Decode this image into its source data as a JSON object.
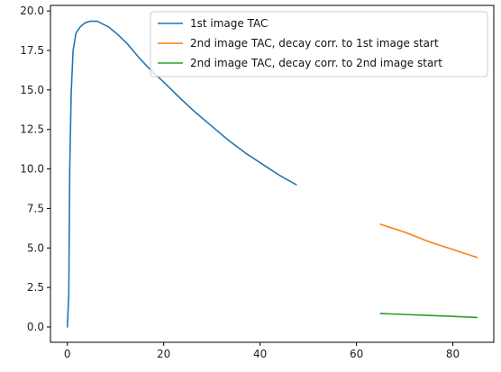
{
  "chart_data": {
    "type": "line",
    "xlim": [
      -3.5,
      88.5
    ],
    "ylim": [
      -0.97,
      20.35
    ],
    "x_ticks": [
      0,
      20,
      40,
      60,
      80
    ],
    "x_tick_labels": [
      "0",
      "20",
      "40",
      "60",
      "80"
    ],
    "y_ticks": [
      0.0,
      2.5,
      5.0,
      7.5,
      10.0,
      12.5,
      15.0,
      17.5,
      20.0
    ],
    "y_tick_labels": [
      "0.0",
      "2.5",
      "5.0",
      "7.5",
      "10.0",
      "12.5",
      "15.0",
      "17.5",
      "20.0"
    ],
    "grid": false,
    "legend_position": "upper-right",
    "series": [
      {
        "name": "1st image TAC",
        "color": "#1f77b4",
        "x": [
          0.0,
          0.3,
          0.5,
          0.8,
          1.2,
          1.8,
          2.7,
          3.7,
          4.8,
          6.2,
          8.5,
          10.5,
          12.5,
          15.0,
          17.5,
          20.0,
          23.0,
          26.5,
          30.0,
          33.5,
          37.0,
          40.5,
          44.0,
          47.5
        ],
        "y": [
          0.0,
          2.0,
          10.0,
          14.8,
          17.5,
          18.6,
          19.0,
          19.25,
          19.35,
          19.35,
          19.0,
          18.5,
          17.9,
          17.0,
          16.2,
          15.5,
          14.6,
          13.6,
          12.7,
          11.8,
          11.0,
          10.3,
          9.6,
          9.0
        ]
      },
      {
        "name": "2nd image TAC, decay corr. to 1st image start",
        "color": "#ff7f0e",
        "x": [
          65.0,
          70.0,
          75.0,
          80.0,
          85.0
        ],
        "y": [
          6.5,
          6.0,
          5.4,
          4.9,
          4.4
        ]
      },
      {
        "name": "2nd image TAC, decay corr. to 2nd image start",
        "color": "#2ca02c",
        "x": [
          65.0,
          70.0,
          75.0,
          80.0,
          85.0
        ],
        "y": [
          0.85,
          0.79,
          0.73,
          0.67,
          0.6
        ]
      }
    ]
  }
}
